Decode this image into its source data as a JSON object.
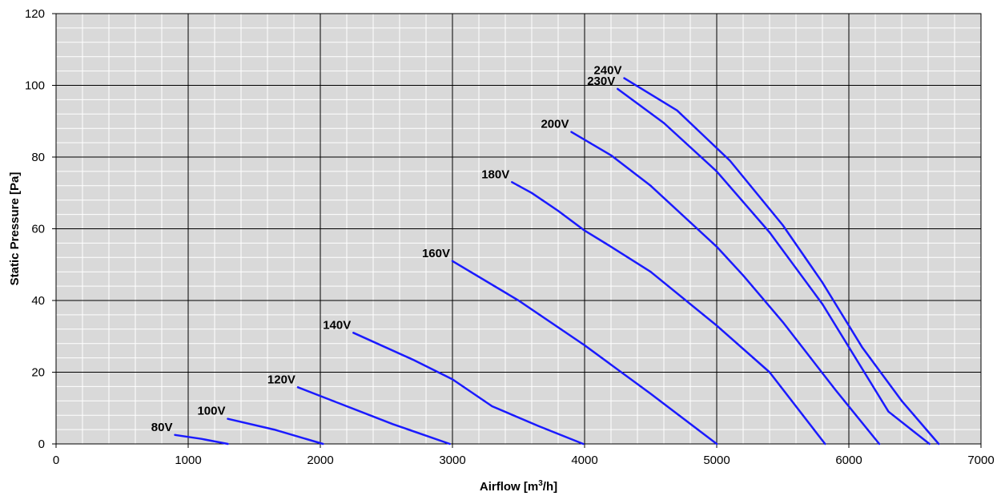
{
  "chart_data": {
    "type": "line",
    "title": "",
    "xlabel": "Airflow [m",
    "xlabel_sup": "3",
    "xlabel_suffix": "/h]",
    "ylabel": "Static Pressure [Pa]",
    "xlim": [
      0,
      7000
    ],
    "ylim": [
      0,
      120
    ],
    "x_ticks": [
      0,
      1000,
      2000,
      3000,
      4000,
      5000,
      6000,
      7000
    ],
    "y_ticks": [
      0,
      20,
      40,
      60,
      80,
      100,
      120
    ],
    "x_tick_labels": [
      "0",
      "1000",
      "2000",
      "3000",
      "4000",
      "5000",
      "6000",
      "7000"
    ],
    "y_tick_labels": [
      "0",
      "20",
      "40",
      "60",
      "80",
      "100",
      "120"
    ],
    "x_minor_step": 200,
    "y_minor_step": 4,
    "grid": true,
    "legend": "none",
    "colors": {
      "plot_background": "#d9d9d9",
      "major_grid": "#000000",
      "minor_grid": "#ffffff",
      "series": "#1a1aff"
    },
    "series": [
      {
        "name": "80V",
        "points": [
          [
            900,
            2.5
          ],
          [
            1100,
            1.4
          ],
          [
            1300,
            0
          ]
        ]
      },
      {
        "name": "100V",
        "points": [
          [
            1300,
            7
          ],
          [
            1650,
            4
          ],
          [
            2020,
            0
          ]
        ]
      },
      {
        "name": "120V",
        "points": [
          [
            1830,
            15.8
          ],
          [
            2200,
            10.5
          ],
          [
            2550,
            5.5
          ],
          [
            2980,
            0
          ]
        ]
      },
      {
        "name": "140V",
        "points": [
          [
            2250,
            31
          ],
          [
            2700,
            23.5
          ],
          [
            3000,
            18
          ],
          [
            3300,
            10.5
          ],
          [
            3650,
            5
          ],
          [
            3990,
            0
          ]
        ]
      },
      {
        "name": "160V",
        "points": [
          [
            3000,
            51
          ],
          [
            3500,
            40
          ],
          [
            4000,
            27.5
          ],
          [
            4500,
            14
          ],
          [
            5000,
            0
          ]
        ]
      },
      {
        "name": "180V",
        "points": [
          [
            3450,
            73
          ],
          [
            3600,
            70
          ],
          [
            3800,
            65
          ],
          [
            4000,
            59.5
          ],
          [
            4200,
            55
          ],
          [
            4500,
            48
          ],
          [
            5000,
            33
          ],
          [
            5400,
            20
          ],
          [
            5820,
            0
          ]
        ]
      },
      {
        "name": "200V",
        "points": [
          [
            3900,
            87
          ],
          [
            4200,
            80.5
          ],
          [
            4500,
            72
          ],
          [
            5000,
            55
          ],
          [
            5200,
            47
          ],
          [
            5500,
            34
          ],
          [
            5900,
            15
          ],
          [
            6230,
            0
          ]
        ]
      },
      {
        "name": "230V",
        "points": [
          [
            4250,
            99
          ],
          [
            4600,
            89.5
          ],
          [
            5000,
            76
          ],
          [
            5400,
            59
          ],
          [
            5800,
            39
          ],
          [
            6100,
            21
          ],
          [
            6300,
            9
          ],
          [
            6610,
            0
          ]
        ]
      },
      {
        "name": "240V",
        "points": [
          [
            4300,
            102
          ],
          [
            4700,
            93
          ],
          [
            5100,
            79
          ],
          [
            5500,
            61
          ],
          [
            5800,
            45
          ],
          [
            6100,
            27
          ],
          [
            6400,
            12
          ],
          [
            6680,
            0
          ]
        ]
      }
    ]
  }
}
